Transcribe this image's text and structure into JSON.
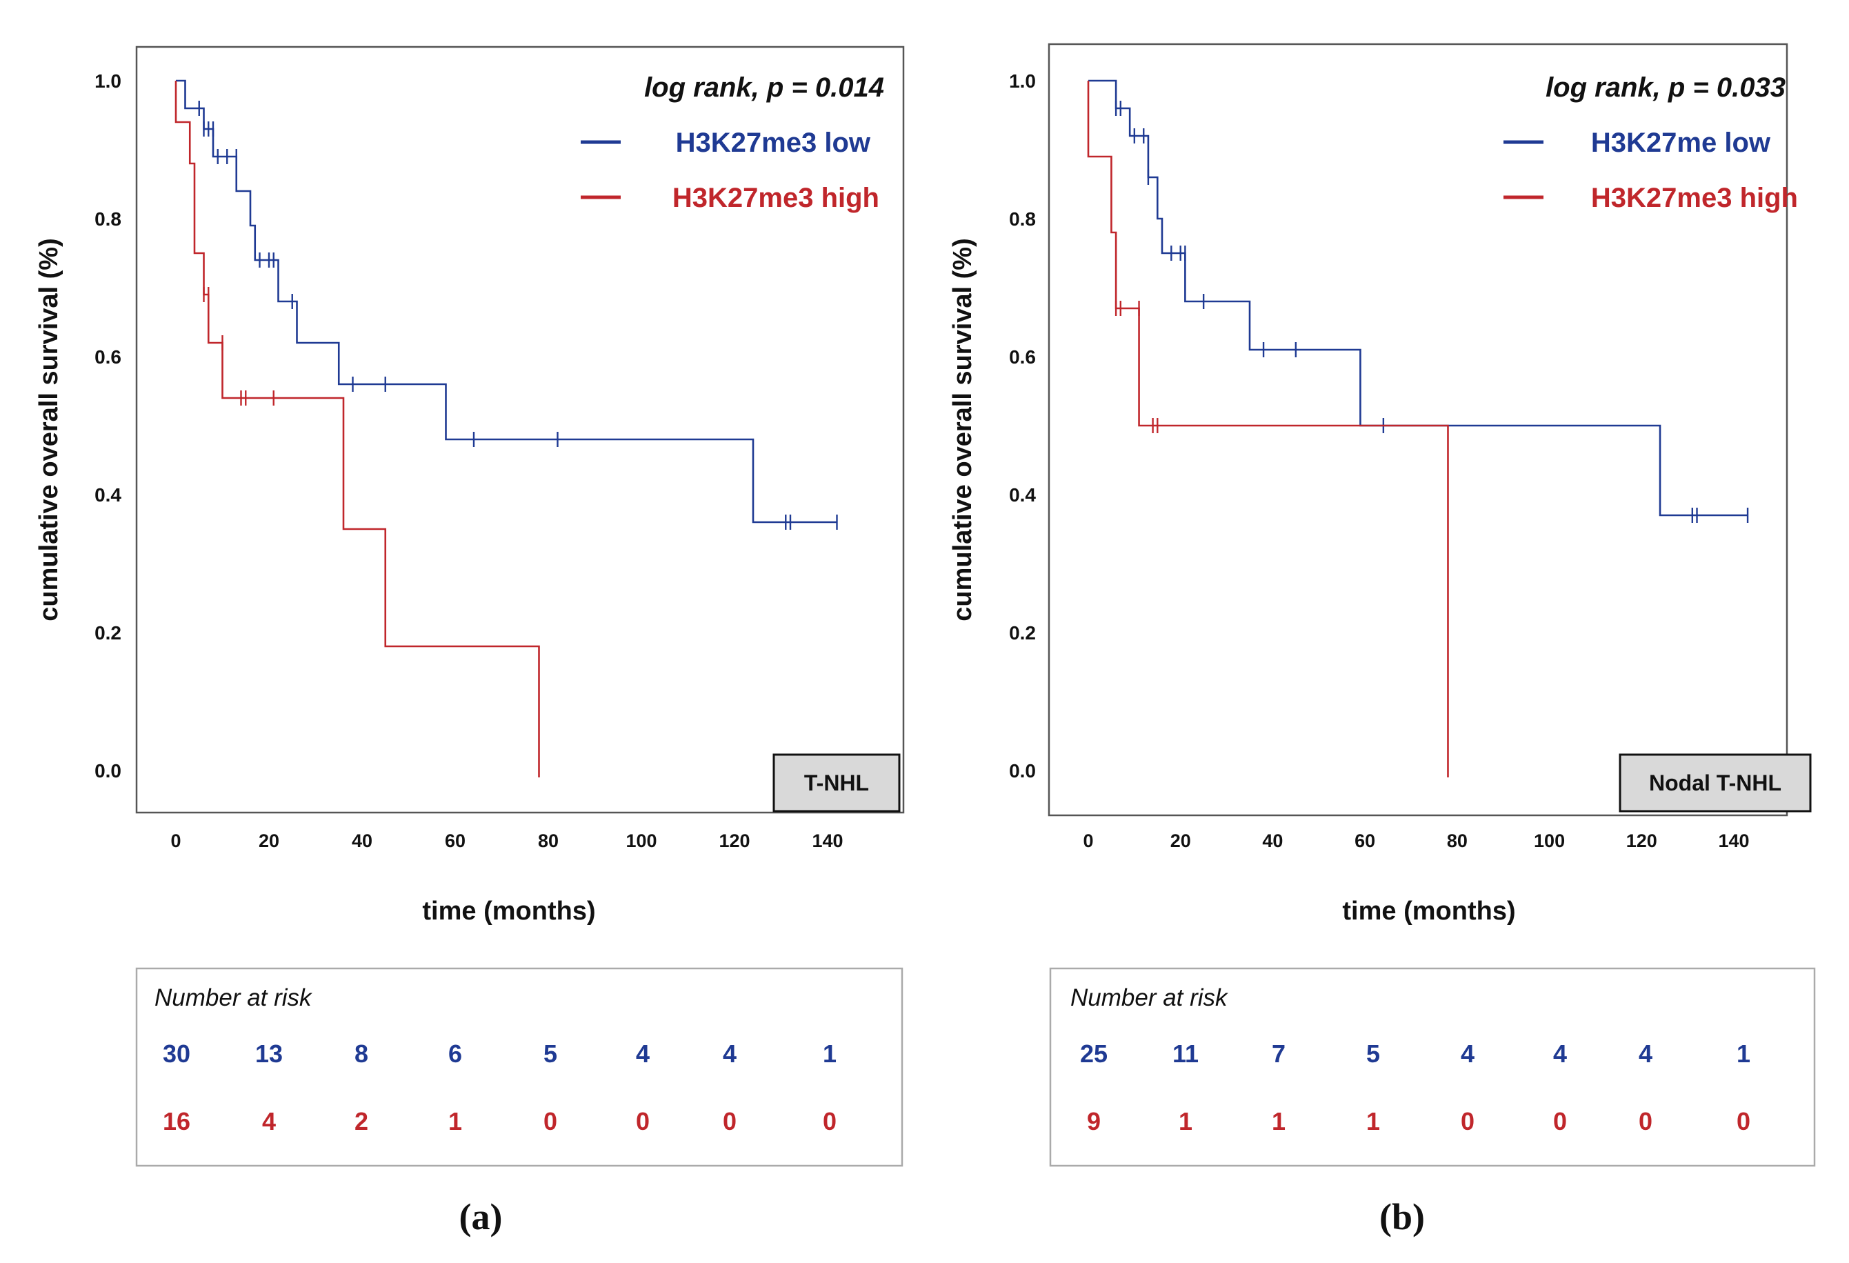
{
  "colors": {
    "low": "#1f3a93",
    "high": "#c0262b",
    "axis": "#555555",
    "badge_bg": "#d9d9d9"
  },
  "chart_data": [
    {
      "type": "line",
      "subtype": "kaplan-meier",
      "panel_label": "(a)",
      "subgroup": "T-NHL",
      "stat_text": "log rank, p = 0.014",
      "xlabel": "time (months)",
      "ylabel": "cumulative overall survival  (%)",
      "xlim": [
        -8,
        157
      ],
      "ylim": [
        -0.06,
        1.06
      ],
      "xticks": [
        "0",
        "20",
        "40",
        "60",
        "80",
        "100",
        "120",
        "140"
      ],
      "yticks": [
        "0.0",
        "0.2",
        "0.4",
        "0.6",
        "0.8",
        "1.0"
      ],
      "series": [
        {
          "name": "H3K27me3 low",
          "color_key": "low",
          "steps": [
            [
              0,
              1.0
            ],
            [
              2,
              0.96
            ],
            [
              6,
              0.93
            ],
            [
              8,
              0.89
            ],
            [
              13,
              0.84
            ],
            [
              16,
              0.79
            ],
            [
              17,
              0.74
            ],
            [
              22,
              0.68
            ],
            [
              26,
              0.62
            ],
            [
              35,
              0.56
            ],
            [
              58,
              0.48
            ],
            [
              124,
              0.36
            ],
            [
              142,
              0.36
            ]
          ],
          "censors": [
            [
              5,
              0.96
            ],
            [
              6,
              0.93
            ],
            [
              7,
              0.93
            ],
            [
              8,
              0.93
            ],
            [
              9,
              0.89
            ],
            [
              11,
              0.89
            ],
            [
              13,
              0.89
            ],
            [
              18,
              0.74
            ],
            [
              20,
              0.74
            ],
            [
              21,
              0.74
            ],
            [
              25,
              0.68
            ],
            [
              38,
              0.56
            ],
            [
              45,
              0.56
            ],
            [
              64,
              0.48
            ],
            [
              82,
              0.48
            ],
            [
              131,
              0.36
            ],
            [
              132,
              0.36
            ],
            [
              142,
              0.36
            ]
          ]
        },
        {
          "name": "H3K27me3 high",
          "color_key": "high",
          "steps": [
            [
              0,
              1.0
            ],
            [
              0,
              0.94
            ],
            [
              3,
              0.88
            ],
            [
              4,
              0.75
            ],
            [
              6,
              0.69
            ],
            [
              7,
              0.62
            ],
            [
              10,
              0.54
            ],
            [
              36,
              0.35
            ],
            [
              45,
              0.18
            ],
            [
              78,
              0.18
            ],
            [
              78,
              -0.01
            ]
          ],
          "censors": [
            [
              6,
              0.69
            ],
            [
              7,
              0.69
            ],
            [
              10,
              0.62
            ],
            [
              14,
              0.54
            ],
            [
              15,
              0.54
            ],
            [
              21,
              0.54
            ]
          ]
        }
      ],
      "risk_table": {
        "header": "Number at risk",
        "low": [
          "30",
          "13",
          "8",
          "6",
          "5",
          "4",
          "4",
          "1"
        ],
        "high": [
          "16",
          "4",
          "2",
          "1",
          "0",
          "0",
          "0",
          "0"
        ]
      }
    },
    {
      "type": "line",
      "subtype": "kaplan-meier",
      "panel_label": "(b)",
      "subgroup": "Nodal T-NHL",
      "stat_text": "log rank, p = 0.033",
      "xlabel": "time (months)",
      "ylabel": "cumulative overall survival  (%)",
      "xlim": [
        -8,
        152
      ],
      "ylim": [
        -0.07,
        1.06
      ],
      "xticks": [
        "0",
        "20",
        "40",
        "60",
        "80",
        "100",
        "120",
        "140"
      ],
      "yticks": [
        "0.0",
        "0.2",
        "0.4",
        "0.6",
        "0.8",
        "1.0"
      ],
      "series": [
        {
          "name": "H3K27me low",
          "color_key": "low",
          "steps": [
            [
              0,
              1.0
            ],
            [
              6,
              0.96
            ],
            [
              9,
              0.92
            ],
            [
              13,
              0.86
            ],
            [
              15,
              0.8
            ],
            [
              16,
              0.75
            ],
            [
              21,
              0.68
            ],
            [
              35,
              0.61
            ],
            [
              59,
              0.5
            ],
            [
              124,
              0.37
            ],
            [
              143,
              0.37
            ]
          ],
          "censors": [
            [
              6,
              0.96
            ],
            [
              7,
              0.96
            ],
            [
              10,
              0.92
            ],
            [
              12,
              0.92
            ],
            [
              13,
              0.86
            ],
            [
              18,
              0.75
            ],
            [
              20,
              0.75
            ],
            [
              21,
              0.75
            ],
            [
              25,
              0.68
            ],
            [
              38,
              0.61
            ],
            [
              45,
              0.61
            ],
            [
              64,
              0.5
            ],
            [
              131,
              0.37
            ],
            [
              132,
              0.37
            ],
            [
              143,
              0.37
            ]
          ]
        },
        {
          "name": "H3K27me3 high",
          "color_key": "high",
          "steps": [
            [
              0,
              1.0
            ],
            [
              0,
              0.89
            ],
            [
              5,
              0.78
            ],
            [
              6,
              0.67
            ],
            [
              11,
              0.5
            ],
            [
              78,
              0.5
            ],
            [
              78,
              -0.01
            ]
          ],
          "censors": [
            [
              6,
              0.67
            ],
            [
              7,
              0.67
            ],
            [
              11,
              0.67
            ],
            [
              14,
              0.5
            ],
            [
              15,
              0.5
            ]
          ]
        }
      ],
      "risk_table": {
        "header": "Number at risk",
        "low": [
          "25",
          "11",
          "7",
          "5",
          "4",
          "4",
          "4",
          "1"
        ],
        "high": [
          "9",
          "1",
          "1",
          "1",
          "0",
          "0",
          "0",
          "0"
        ]
      }
    }
  ]
}
